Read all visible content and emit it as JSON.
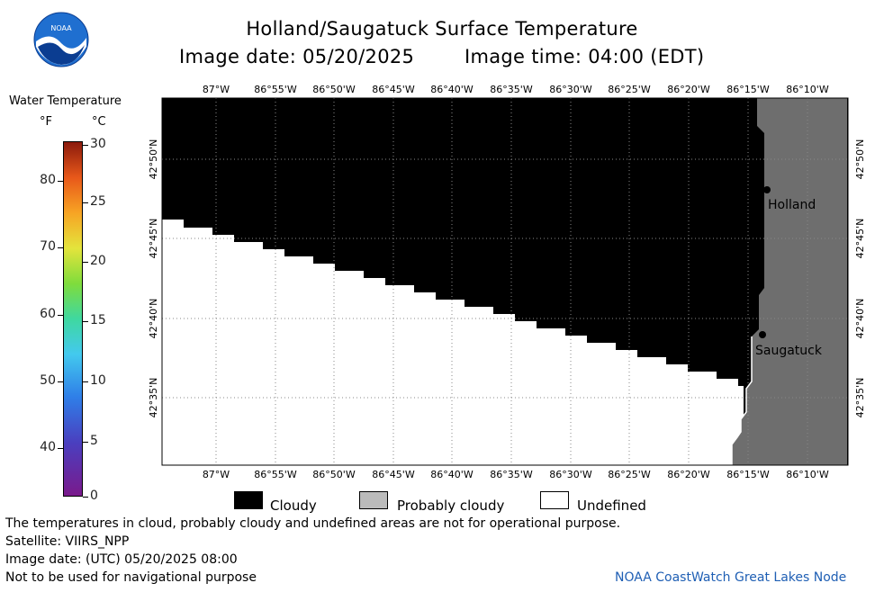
{
  "header": {
    "title": "Holland/Saugatuck Surface Temperature",
    "image_date": "Image date: 05/20/2025",
    "image_time": "Image time: 04:00 (EDT)"
  },
  "logo": {
    "text": "NOAA"
  },
  "colorbar": {
    "title": "Water Temperature",
    "unit_f": "°F",
    "unit_c": "°C",
    "f_ticks": [
      "80",
      "70",
      "60",
      "50",
      "40"
    ],
    "c_ticks": [
      "30",
      "25",
      "20",
      "15",
      "10",
      "5",
      "0"
    ]
  },
  "axes": {
    "lon_labels": [
      "87°W",
      "86°55'W",
      "86°50'W",
      "86°45'W",
      "86°40'W",
      "86°35'W",
      "86°30'W",
      "86°25'W",
      "86°20'W",
      "86°15'W",
      "86°10'W"
    ],
    "lat_labels": [
      "42°50'N",
      "42°45'N",
      "42°40'N",
      "42°35'N"
    ]
  },
  "places": [
    {
      "name": "Holland"
    },
    {
      "name": "Saugatuck"
    }
  ],
  "legend": {
    "cloudy": "Cloudy",
    "probably_cloudy": "Probably cloudy",
    "undefined": "Undefined"
  },
  "colors": {
    "cloudy": "#000000",
    "probably_cloudy": "#bbbbbb",
    "land": "#6e6e6e",
    "undefined": "#ffffff",
    "credit": "#1f5fb4"
  },
  "footer": {
    "disclaimer": "The temperatures in cloud, probably cloudy and undefined areas are not for operational purpose.",
    "satellite": "Satellite: VIIRS_NPP",
    "utc_date": "Image date: (UTC) 05/20/2025  08:00",
    "nav_warning": "Not to be used for navigational purpose",
    "credit": "NOAA CoastWatch Great Lakes Node"
  }
}
